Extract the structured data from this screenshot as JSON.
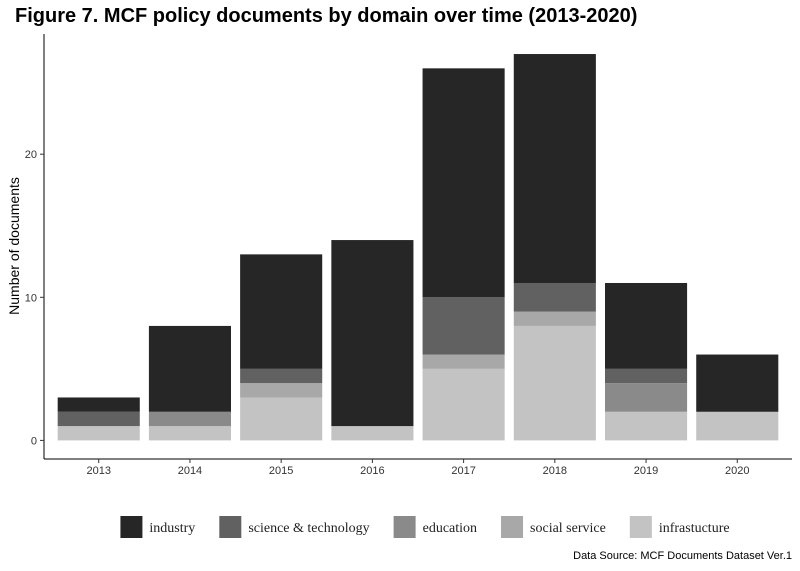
{
  "title": "Figure 7. MCF policy documents by domain over time (2013-2020)",
  "caption": "Data Source: MCF Documents Dataset Ver.1",
  "chart_data": {
    "type": "bar",
    "stacked": true,
    "title": "Figure 7. MCF policy documents by domain over time (2013-2020)",
    "xlabel": "",
    "ylabel": "Number of documents",
    "categories": [
      "2013",
      "2014",
      "2015",
      "2016",
      "2017",
      "2018",
      "2019",
      "2020"
    ],
    "yticks": [
      0,
      10,
      20
    ],
    "ylim": [
      -1.3,
      28.4
    ],
    "grid": false,
    "legend_position": "bottom",
    "series": [
      {
        "name": "infrastucture",
        "color": "#c3c3c3",
        "values": [
          1,
          1,
          3,
          1,
          5,
          8,
          2,
          2
        ]
      },
      {
        "name": "social service",
        "color": "#a8a8a8",
        "values": [
          0,
          0,
          1,
          0,
          1,
          1,
          0,
          0
        ]
      },
      {
        "name": "education",
        "color": "#8a8a8a",
        "values": [
          0,
          1,
          0,
          0,
          0,
          0,
          2,
          0
        ]
      },
      {
        "name": "science & technology",
        "color": "#616161",
        "values": [
          1,
          0,
          1,
          0,
          4,
          2,
          1,
          0
        ]
      },
      {
        "name": "industry",
        "color": "#262626",
        "values": [
          1,
          6,
          8,
          13,
          16,
          16,
          6,
          4
        ]
      }
    ],
    "legend_order": [
      "industry",
      "science & technology",
      "education",
      "social service",
      "infrastucture"
    ],
    "caption": "Data Source: MCF Documents Dataset Ver.1"
  }
}
